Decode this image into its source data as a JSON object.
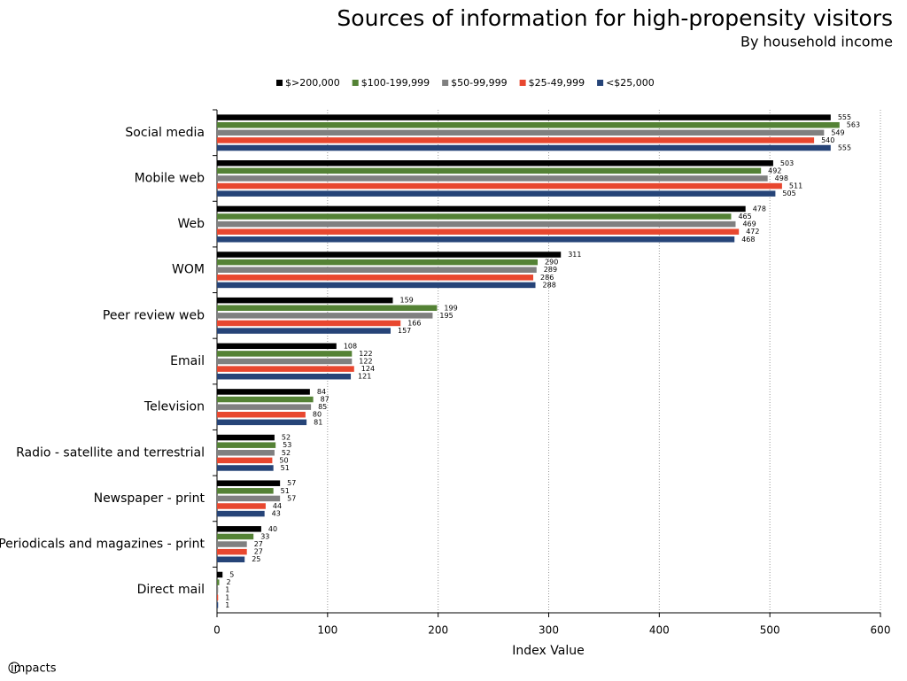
{
  "chart_data": {
    "type": "hbar",
    "title": "Sources of information for high-propensity visitors",
    "subtitle": "By household income",
    "x_label": "Index Value",
    "logo": "impacts",
    "categories": [
      "Social media",
      "Mobile web",
      "Web",
      "WOM",
      "Peer review web",
      "Email",
      "Television",
      "Radio - satellite and terrestrial",
      "Newspaper - print",
      "Periodicals and magazines - print",
      "Direct mail"
    ],
    "series": [
      {
        "name": "$>200,000",
        "color": "#000000",
        "values": [
          555,
          503,
          478,
          311,
          159,
          108,
          84,
          52,
          57,
          40,
          5
        ]
      },
      {
        "name": "$100-199,999",
        "color": "#548235",
        "values": [
          563,
          492,
          465,
          290,
          199,
          122,
          87,
          53,
          51,
          33,
          2
        ]
      },
      {
        "name": "$50-99,999",
        "color": "#808080",
        "values": [
          549,
          498,
          469,
          289,
          195,
          122,
          85,
          52,
          57,
          27,
          1
        ]
      },
      {
        "name": "$25-49,999",
        "color": "#e8472f",
        "values": [
          540,
          511,
          472,
          286,
          166,
          124,
          80,
          50,
          44,
          27,
          1
        ]
      },
      {
        "name": "<$25,000",
        "color": "#264478",
        "values": [
          555,
          505,
          468,
          288,
          157,
          121,
          81,
          51,
          43,
          25,
          1
        ]
      }
    ],
    "xlim": [
      0,
      600
    ],
    "xticks": [
      0,
      100,
      200,
      300,
      400,
      500,
      600
    ],
    "grid": true,
    "legend": "top"
  }
}
